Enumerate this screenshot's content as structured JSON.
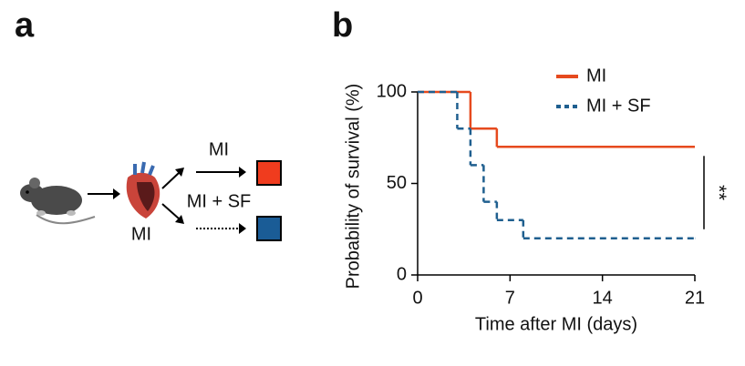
{
  "panel_a": {
    "label": "a",
    "heart_label": "MI",
    "branches": [
      {
        "label": "MI",
        "color": "#f03c1e"
      },
      {
        "label": "MI + SF",
        "color": "#1a5c96"
      }
    ]
  },
  "chart_data": {
    "type": "step",
    "label": "b",
    "xlabel": "Time after MI (days)",
    "ylabel": "Probability of survival (%)",
    "xlim": [
      0,
      21
    ],
    "ylim": [
      0,
      100
    ],
    "xticks": [
      0,
      7,
      14,
      21
    ],
    "yticks": [
      0,
      50,
      100
    ],
    "legend": "upper right",
    "annotation": "**",
    "series": [
      {
        "name": "MI",
        "color": "#e64a1e",
        "dashed": false,
        "x": [
          0,
          4,
          6,
          21
        ],
        "values": [
          100,
          80,
          70,
          70
        ]
      },
      {
        "name": "MI + SF",
        "color": "#1f5f8f",
        "dashed": true,
        "x": [
          0,
          3,
          4,
          5,
          6,
          8,
          21
        ],
        "values": [
          100,
          80,
          60,
          40,
          30,
          20,
          20
        ]
      }
    ]
  }
}
